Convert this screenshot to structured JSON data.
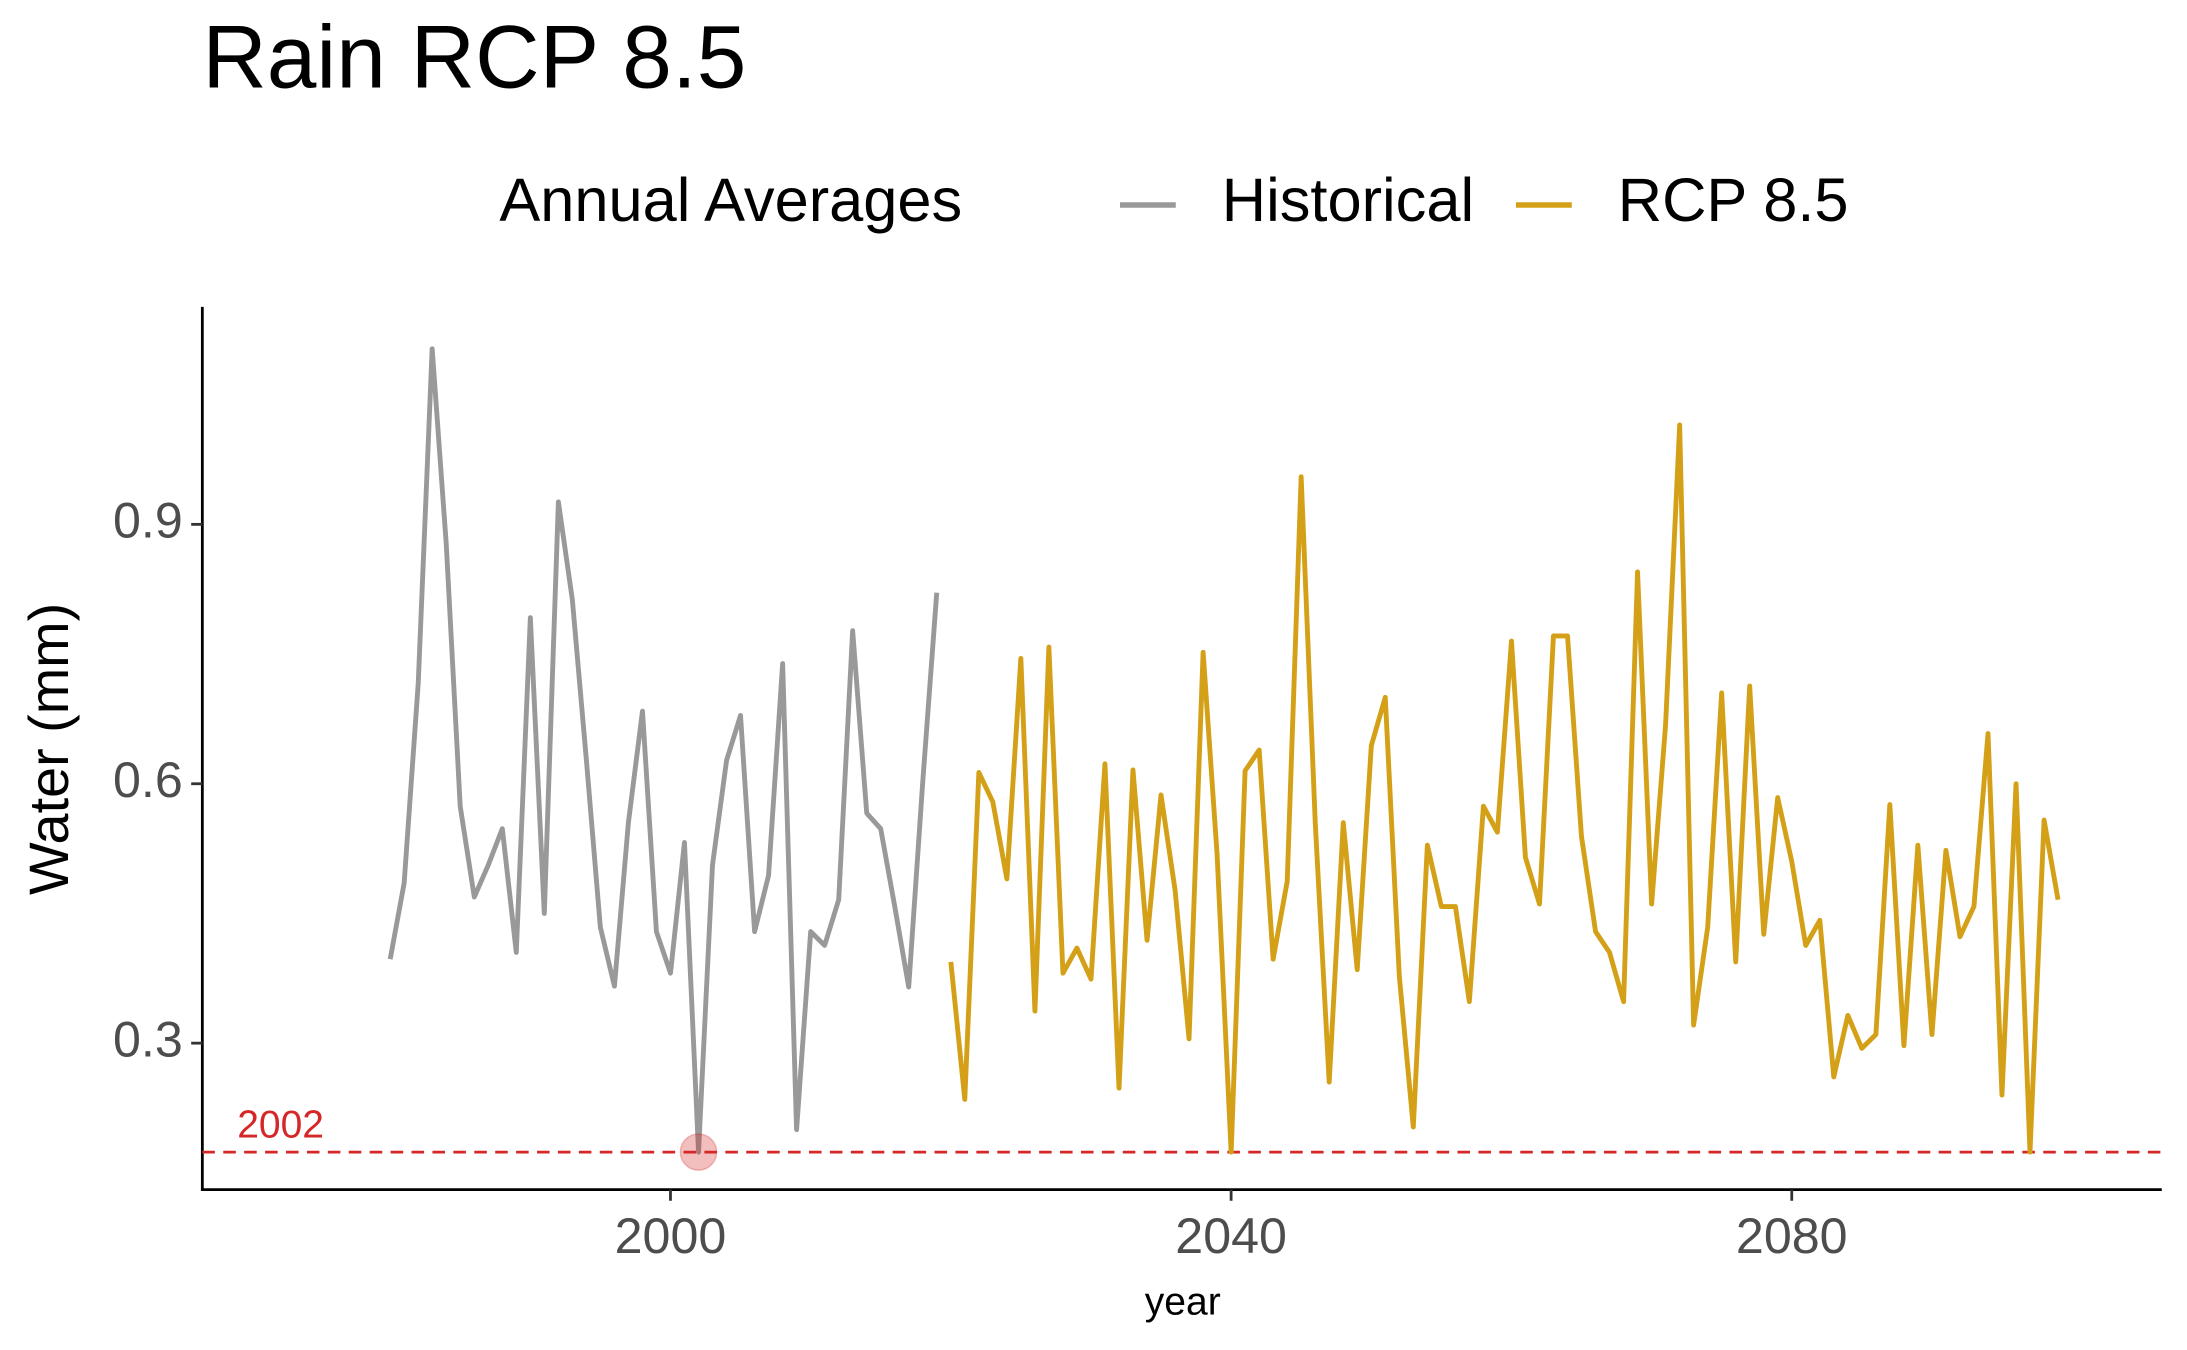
{
  "chart_data": {
    "type": "line",
    "title": "Rain RCP 8.5",
    "legend_title": "Annual Averages",
    "legend_position": "top",
    "xlabel": "year",
    "ylabel": "Water (mm)",
    "xlim": [
      1966.6,
      2106.4
    ],
    "ylim": [
      0.1306,
      1.1516
    ],
    "xticks": [
      2000,
      2040,
      2080
    ],
    "yticks": [
      0.3,
      0.6,
      0.9
    ],
    "grid": false,
    "x": [
      1980,
      1981,
      1982,
      1983,
      1984,
      1985,
      1986,
      1987,
      1988,
      1989,
      1990,
      1991,
      1992,
      1993,
      1994,
      1995,
      1996,
      1997,
      1998,
      1999,
      2000,
      2001,
      2002,
      2003,
      2004,
      2005,
      2006,
      2007,
      2008,
      2009,
      2010,
      2011,
      2012,
      2013,
      2014,
      2015,
      2016,
      2017,
      2018,
      2019,
      2020,
      2021,
      2022,
      2023,
      2024,
      2025,
      2026,
      2027,
      2028,
      2029,
      2030,
      2031,
      2032,
      2033,
      2034,
      2035,
      2036,
      2037,
      2038,
      2039,
      2040,
      2041,
      2042,
      2043,
      2044,
      2045,
      2046,
      2047,
      2048,
      2049,
      2050,
      2051,
      2052,
      2053,
      2054,
      2055,
      2056,
      2057,
      2058,
      2059,
      2060,
      2061,
      2062,
      2063,
      2064,
      2065,
      2066,
      2067,
      2068,
      2069,
      2070,
      2071,
      2072,
      2073,
      2074,
      2075,
      2076,
      2077,
      2078,
      2079,
      2080,
      2081,
      2082,
      2083,
      2084,
      2085,
      2086,
      2087,
      2088,
      2089,
      2090,
      2091,
      2092,
      2093,
      2094,
      2095,
      2096,
      2097,
      2098,
      2099
    ],
    "series": [
      {
        "name": "Historical",
        "color": "#999999",
        "values": [
          0.397,
          0.485,
          0.716,
          1.103,
          0.877,
          0.574,
          0.469,
          0.506,
          0.548,
          0.405,
          0.792,
          0.45,
          0.926,
          0.813,
          0.627,
          0.434,
          0.366,
          0.555,
          0.684,
          0.429,
          0.381,
          0.532,
          0.174,
          0.506,
          0.627,
          0.679,
          0.429,
          0.494,
          0.739,
          0.2,
          0.429,
          0.413,
          0.466,
          0.777,
          0.566,
          0.548,
          0.458,
          0.365,
          0.603,
          0.821,
          null,
          null,
          null,
          null,
          null,
          null,
          null,
          null,
          null,
          null,
          null,
          null,
          null,
          null,
          null,
          null,
          null,
          null,
          null,
          null,
          null,
          null,
          null,
          null,
          null,
          null,
          null,
          null,
          null,
          null,
          null,
          null,
          null,
          null,
          null,
          null,
          null,
          null,
          null,
          null,
          null,
          null,
          null,
          null,
          null,
          null,
          null,
          null,
          null,
          null,
          null,
          null,
          null,
          null,
          null,
          null,
          null,
          null,
          null,
          null,
          null,
          null,
          null,
          null,
          null,
          null,
          null,
          null,
          null,
          null,
          null,
          null,
          null,
          null,
          null,
          null,
          null,
          null,
          null,
          null
        ]
      },
      {
        "name": "RCP 8.5",
        "color": "#d4a017",
        "values": [
          null,
          null,
          null,
          null,
          null,
          null,
          null,
          null,
          null,
          null,
          null,
          null,
          null,
          null,
          null,
          null,
          null,
          null,
          null,
          null,
          null,
          null,
          null,
          null,
          null,
          null,
          null,
          null,
          null,
          null,
          null,
          null,
          null,
          null,
          null,
          null,
          null,
          null,
          null,
          null,
          0.394,
          0.235,
          0.613,
          0.579,
          0.49,
          0.745,
          0.337,
          0.758,
          0.381,
          0.41,
          0.374,
          0.623,
          0.248,
          0.616,
          0.419,
          0.587,
          0.477,
          0.305,
          0.752,
          0.519,
          0.174,
          0.615,
          0.639,
          0.397,
          0.487,
          0.955,
          0.555,
          0.255,
          0.555,
          0.385,
          0.644,
          0.7,
          0.377,
          0.203,
          0.529,
          0.458,
          0.458,
          0.348,
          0.574,
          0.544,
          0.765,
          0.515,
          0.461,
          0.771,
          0.771,
          0.539,
          0.429,
          0.405,
          0.348,
          0.845,
          0.461,
          0.668,
          1.015,
          0.321,
          0.434,
          0.705,
          0.394,
          0.713,
          0.426,
          0.584,
          0.51,
          0.413,
          0.442,
          0.261,
          0.332,
          0.294,
          0.31,
          0.576,
          0.297,
          0.529,
          0.31,
          0.523,
          0.423,
          0.458,
          0.658,
          0.24,
          0.6,
          0.174,
          0.558,
          0.466
        ]
      }
    ],
    "hline": {
      "value": 0.174,
      "label": "2002",
      "color": "#d62728"
    },
    "highlight": {
      "series": 0,
      "index": 22,
      "color": "#d62728"
    }
  }
}
